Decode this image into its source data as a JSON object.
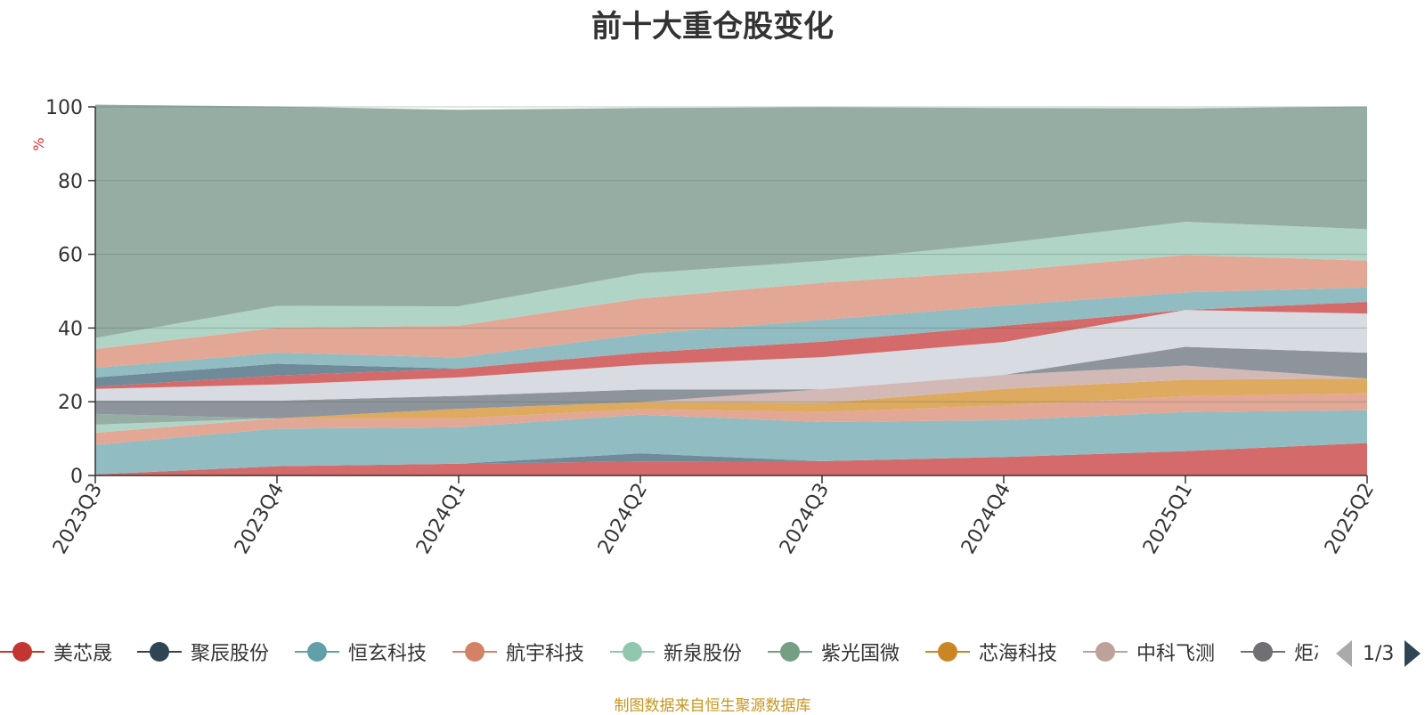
{
  "chart_data": {
    "type": "area",
    "title": "前十大重仓股变化",
    "ylabel": "%",
    "ylim": [
      0,
      100
    ],
    "yticks": [
      0,
      20,
      40,
      60,
      80,
      100
    ],
    "categories": [
      "2023Q3",
      "2023Q4",
      "2024Q1",
      "2024Q2",
      "2024Q3",
      "2024Q4",
      "2025Q1",
      "2025Q2"
    ],
    "stacked": true,
    "grid": true,
    "legend_position": "bottom",
    "series": [
      {
        "name": "美芯晟",
        "color": "#d46a6a",
        "values": [
          0.3,
          2.5,
          3.2,
          3.8,
          3.9,
          5.0,
          6.6,
          8.8
        ]
      },
      {
        "name": "聚辰股份",
        "color": "#6f8a99",
        "values": [
          0.0,
          0.0,
          0.0,
          2.2,
          0.0,
          0.0,
          0.0,
          0.0
        ]
      },
      {
        "name": "恒玄科技",
        "color": "#91bcc2",
        "values": [
          8.0,
          10.2,
          9.9,
          10.5,
          10.6,
          10.0,
          10.6,
          8.9
        ]
      },
      {
        "name": "航宇科技",
        "color": "#e2a795",
        "values": [
          3.3,
          2.8,
          2.4,
          1.5,
          2.7,
          4.0,
          4.3,
          4.6
        ]
      },
      {
        "name": "新泉股份",
        "color": "#b0d5c6",
        "values": [
          2.2,
          0.0,
          0.0,
          0.0,
          0.0,
          0.0,
          0.0,
          0.0
        ]
      },
      {
        "name": "紫光国微",
        "color": "#96ada4",
        "values": [
          2.9,
          0.0,
          0.0,
          0.0,
          0.0,
          0.0,
          0.0,
          0.0
        ]
      },
      {
        "name": "芯海科技",
        "color": "#ddaa5f",
        "values": [
          0.0,
          0.0,
          2.6,
          1.9,
          2.5,
          4.5,
          4.5,
          4.0
        ]
      },
      {
        "name": "中科飞测",
        "color": "#d3b9b5",
        "values": [
          0.0,
          0.0,
          0.0,
          0.0,
          3.7,
          3.8,
          3.8,
          0.0
        ]
      },
      {
        "name": "炬芯科技",
        "color": "#8d949b",
        "values": [
          3.6,
          4.8,
          3.5,
          3.4,
          0.0,
          0.0,
          5.1,
          7.0
        ]
      },
      {
        "name": "",
        "color": "#d8dbe1",
        "values": [
          3.2,
          4.4,
          5.0,
          6.7,
          8.7,
          8.9,
          10.0,
          10.6
        ]
      },
      {
        "name": "",
        "color": "#d46a6a",
        "values": [
          0.6,
          2.4,
          2.4,
          3.3,
          4.2,
          4.4,
          0.0,
          3.2
        ]
      },
      {
        "name": "",
        "color": "#6f8a99",
        "values": [
          2.5,
          3.2,
          0.0,
          0.0,
          0.0,
          0.0,
          0.0,
          0.0
        ]
      },
      {
        "name": "",
        "color": "#91bcc2",
        "values": [
          2.6,
          3.0,
          3.0,
          5.0,
          5.9,
          5.5,
          4.8,
          3.9
        ]
      },
      {
        "name": "",
        "color": "#e2a795",
        "values": [
          5.1,
          6.8,
          8.6,
          9.7,
          10.1,
          9.4,
          10.1,
          7.3
        ]
      },
      {
        "name": "",
        "color": "#b0d5c6",
        "values": [
          3.0,
          5.9,
          5.3,
          6.8,
          5.9,
          7.5,
          9.0,
          8.5
        ]
      },
      {
        "name": "",
        "color": "#96ada4",
        "values": [
          63.3,
          54.1,
          53.3,
          44.9,
          41.7,
          36.7,
          30.8,
          33.3
        ]
      }
    ]
  },
  "legend": {
    "items": [
      {
        "label": "美芯晟",
        "color": "#c23531"
      },
      {
        "label": "聚辰股份",
        "color": "#2f4554"
      },
      {
        "label": "恒玄科技",
        "color": "#61a0a8"
      },
      {
        "label": "航宇科技",
        "color": "#d48265"
      },
      {
        "label": "新泉股份",
        "color": "#91c7ae"
      },
      {
        "label": "紫光国微",
        "color": "#749f83"
      },
      {
        "label": "芯海科技",
        "color": "#ca8622"
      },
      {
        "label": "中科飞测",
        "color": "#bda29a"
      },
      {
        "label": "炬芯科技",
        "color": "#6e7074"
      }
    ],
    "page": "1/3"
  },
  "source_note": "制图数据来自恒生聚源数据库"
}
